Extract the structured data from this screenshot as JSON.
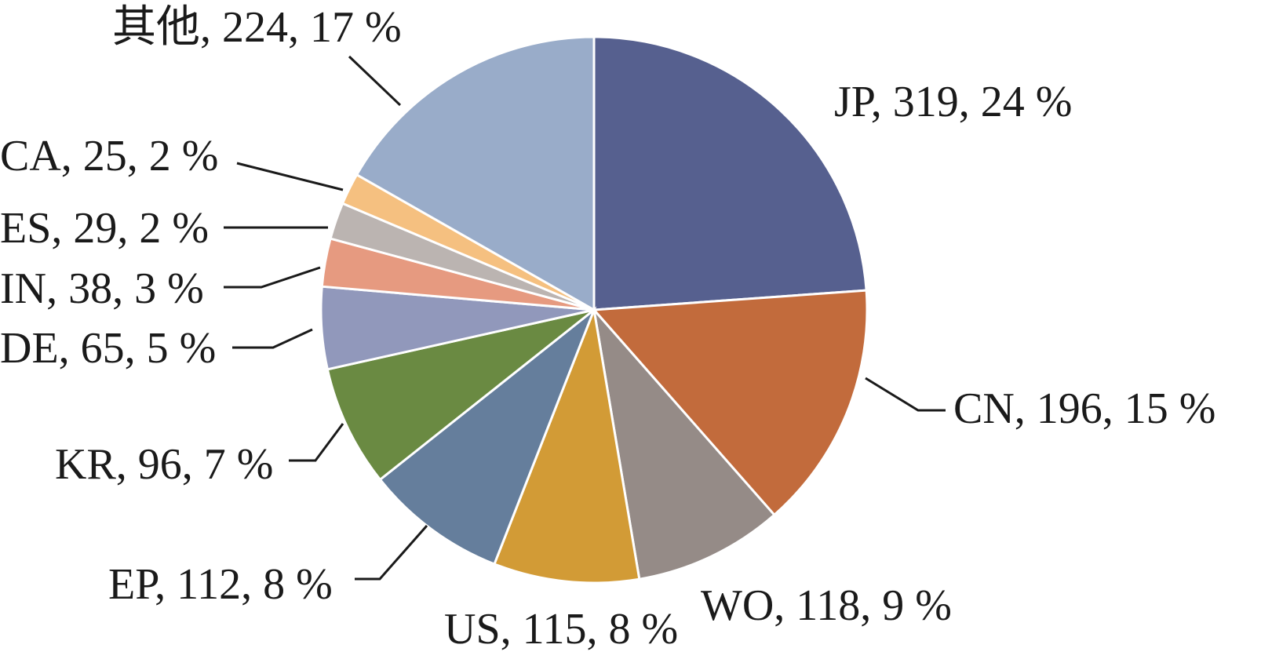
{
  "chart_data": {
    "type": "pie",
    "start_angle_deg": 0,
    "direction": "clockwise",
    "slices": [
      {
        "label": "JP",
        "value": 319,
        "percent": "24 %",
        "text": "JP, 319, 24 %",
        "color": "#56608f"
      },
      {
        "label": "CN",
        "value": 196,
        "percent": "15 %",
        "text": "CN, 196, 15 %",
        "color": "#c26b3c"
      },
      {
        "label": "WO",
        "value": 118,
        "percent": "9 %",
        "text": "WO, 118, 9 %",
        "color": "#958b87"
      },
      {
        "label": "US",
        "value": 115,
        "percent": "8 %",
        "text": "US, 115, 8 %",
        "color": "#d29b36"
      },
      {
        "label": "EP",
        "value": 112,
        "percent": "8 %",
        "text": "EP, 112, 8 %",
        "color": "#657e9c"
      },
      {
        "label": "KR",
        "value": 96,
        "percent": "7 %",
        "text": "KR, 96, 7 %",
        "color": "#6a8a42"
      },
      {
        "label": "DE",
        "value": 65,
        "percent": "5 %",
        "text": "DE, 65, 5 %",
        "color": "#9198bb"
      },
      {
        "label": "IN",
        "value": 38,
        "percent": "3 %",
        "text": "IN, 38, 3 %",
        "color": "#e69a80"
      },
      {
        "label": "ES",
        "value": 29,
        "percent": "2 %",
        "text": "ES, 29, 2 %",
        "color": "#bbb4b1"
      },
      {
        "label": "CA",
        "value": 25,
        "percent": "2 %",
        "text": "CA, 25, 2 %",
        "color": "#f5c080"
      },
      {
        "label": "其他",
        "value": 224,
        "percent": "17 %",
        "text": "其他, 224, 17 %",
        "color": "#99acc9"
      }
    ]
  }
}
